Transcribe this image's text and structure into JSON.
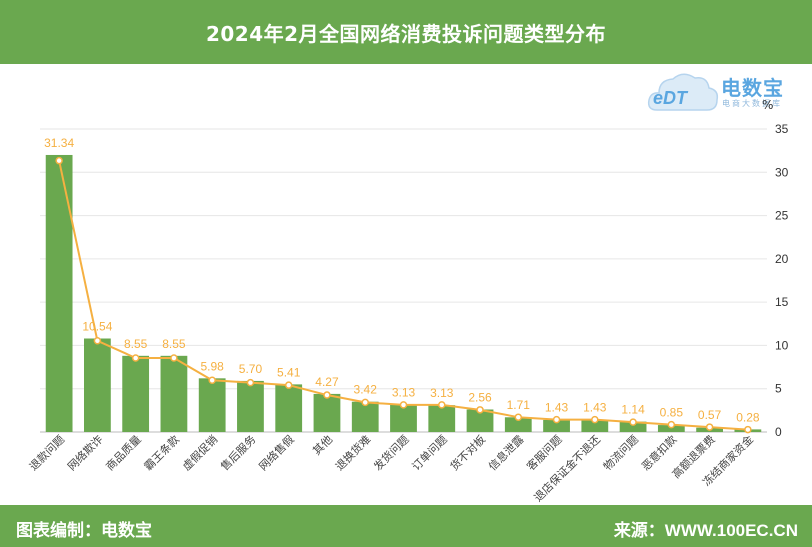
{
  "header": {
    "title": "2024年2月全国网络消费投诉问题类型分布"
  },
  "logo": {
    "name": "电数宝",
    "sub": "电商大数据库",
    "mark": "eDT"
  },
  "footer": {
    "left": "图表编制：电数宝",
    "right": "来源：WWW.100EC.CN"
  },
  "colors": {
    "bar": "#6aa84f",
    "line": "#f5b041",
    "header": "#6aa84f"
  },
  "chart_data": {
    "type": "bar",
    "title": "2024年2月全国网络消费投诉问题类型分布",
    "ylabel": "%",
    "ylim": [
      0,
      35
    ],
    "yticks": [
      0,
      5,
      10,
      15,
      20,
      25,
      30,
      35
    ],
    "y_axis_position": "right",
    "grid": true,
    "categories": [
      "退款问题",
      "网络欺诈",
      "商品质量",
      "霸王条款",
      "虚假促销",
      "售后服务",
      "网络售假",
      "其他",
      "退换货难",
      "发货问题",
      "订单问题",
      "货不对板",
      "信息泄露",
      "客服问题",
      "退店保证金不退还",
      "物流问题",
      "恶意扣款",
      "高额退票费",
      "冻结商家资金"
    ],
    "series": [
      {
        "type": "bar",
        "values": [
          32.0,
          10.8,
          8.8,
          8.8,
          6.2,
          5.9,
          5.5,
          4.4,
          3.5,
          3.2,
          3.1,
          2.6,
          1.7,
          1.4,
          1.4,
          1.2,
          0.8,
          0.5,
          0.3
        ]
      },
      {
        "type": "line",
        "values": [
          31.34,
          10.54,
          8.55,
          8.55,
          5.98,
          5.7,
          5.41,
          4.27,
          3.42,
          3.13,
          3.13,
          2.56,
          1.71,
          1.43,
          1.43,
          1.14,
          0.85,
          0.57,
          0.28
        ]
      }
    ],
    "data_labels": [
      "31.34",
      "10.54",
      "8.55",
      "8.55",
      "5.98",
      "5.70",
      "5.41",
      "4.27",
      "3.42",
      "3.13",
      "3.13",
      "2.56",
      "1.71",
      "1.43",
      "1.43",
      "1.14",
      "0.85",
      "0.57",
      "0.28"
    ]
  }
}
